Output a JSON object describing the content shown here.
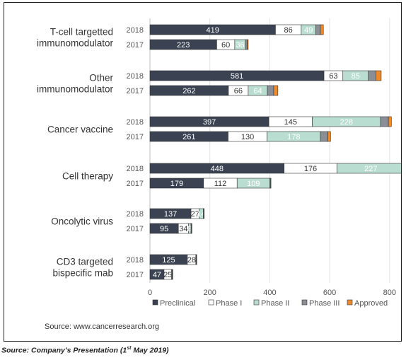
{
  "chart_data": {
    "type": "bar",
    "orientation": "horizontal",
    "stacked": true,
    "groups": [
      {
        "label": [
          "T-cell targetted",
          "immunomodulator"
        ],
        "years": [
          "2018",
          "2017"
        ]
      },
      {
        "label": [
          "Other",
          "immunomodulator"
        ],
        "years": [
          "2018",
          "2017"
        ]
      },
      {
        "label": [
          "Cancer vaccine"
        ],
        "years": [
          "2018",
          "2017"
        ]
      },
      {
        "label": [
          "Cell therapy"
        ],
        "years": [
          "2018",
          "2017"
        ]
      },
      {
        "label": [
          "Oncolytic virus"
        ],
        "years": [
          "2018",
          "2017"
        ]
      },
      {
        "label": [
          "CD3 targeted",
          "bispecific mab"
        ],
        "years": [
          "2018",
          "2017"
        ]
      }
    ],
    "series": [
      {
        "name": "Preclinical",
        "color": "#3b4352",
        "label_color": "#ffffff",
        "values": [
          [
            419,
            223
          ],
          [
            581,
            262
          ],
          [
            397,
            261
          ],
          [
            448,
            179
          ],
          [
            137,
            95
          ],
          [
            125,
            47
          ]
        ]
      },
      {
        "name": "Phase I",
        "color": "#ffffff",
        "label_color": "#333333",
        "values": [
          [
            86,
            60
          ],
          [
            63,
            66
          ],
          [
            145,
            130
          ],
          [
            176,
            112
          ],
          [
            27,
            34
          ],
          [
            28,
            25
          ]
        ]
      },
      {
        "name": "Phase II",
        "color": "#b9ddd0",
        "label_color": "#ffffff",
        "values": [
          [
            49,
            36
          ],
          [
            85,
            64
          ],
          [
            228,
            178
          ],
          [
            227,
            109
          ],
          [
            14,
            8
          ],
          [
            1,
            2
          ]
        ]
      },
      {
        "name": "Phase III",
        "color": "#8a8f96",
        "label_color": "#ffffff",
        "values": [
          [
            15,
            6
          ],
          [
            25,
            21
          ],
          [
            26,
            25
          ],
          [
            8,
            3
          ],
          [
            2,
            2
          ],
          [
            1,
            1
          ]
        ]
      },
      {
        "name": "Approved",
        "color": "#ef8a2a",
        "label_color": "#ffffff",
        "values": [
          [
            10,
            3
          ],
          [
            18,
            14
          ],
          [
            10,
            9
          ],
          [
            8,
            1
          ],
          [
            1,
            1
          ],
          [
            1,
            1
          ]
        ]
      }
    ],
    "value_labels": [
      [
        [
          "419",
          "86",
          "49",
          "",
          ""
        ],
        [
          "223",
          "60",
          "36",
          "",
          ""
        ]
      ],
      [
        [
          "581",
          "63",
          "85",
          "",
          ""
        ],
        [
          "262",
          "66",
          "64",
          "",
          ""
        ]
      ],
      [
        [
          "397",
          "145",
          "228",
          "",
          ""
        ],
        [
          "261",
          "130",
          "178",
          "",
          ""
        ]
      ],
      [
        [
          "448",
          "176",
          "227",
          "",
          ""
        ],
        [
          "179",
          "112",
          "109",
          "",
          ""
        ]
      ],
      [
        [
          "137",
          "27",
          "14",
          "",
          ""
        ],
        [
          "95",
          "34",
          "8",
          "",
          ""
        ]
      ],
      [
        [
          "125",
          "28",
          "",
          "",
          ""
        ],
        [
          "47",
          "25",
          "",
          "",
          ""
        ]
      ]
    ],
    "xlim": [
      0,
      850
    ],
    "xticks": [
      0,
      200,
      400,
      600,
      800
    ],
    "grid": true,
    "legend_position": "bottom"
  },
  "source_note": "Source: www.cancerresearch.org",
  "footer": {
    "prefix": "Source: Company’s Presentation (1",
    "sup": "st",
    "suffix": " May 2019)"
  }
}
